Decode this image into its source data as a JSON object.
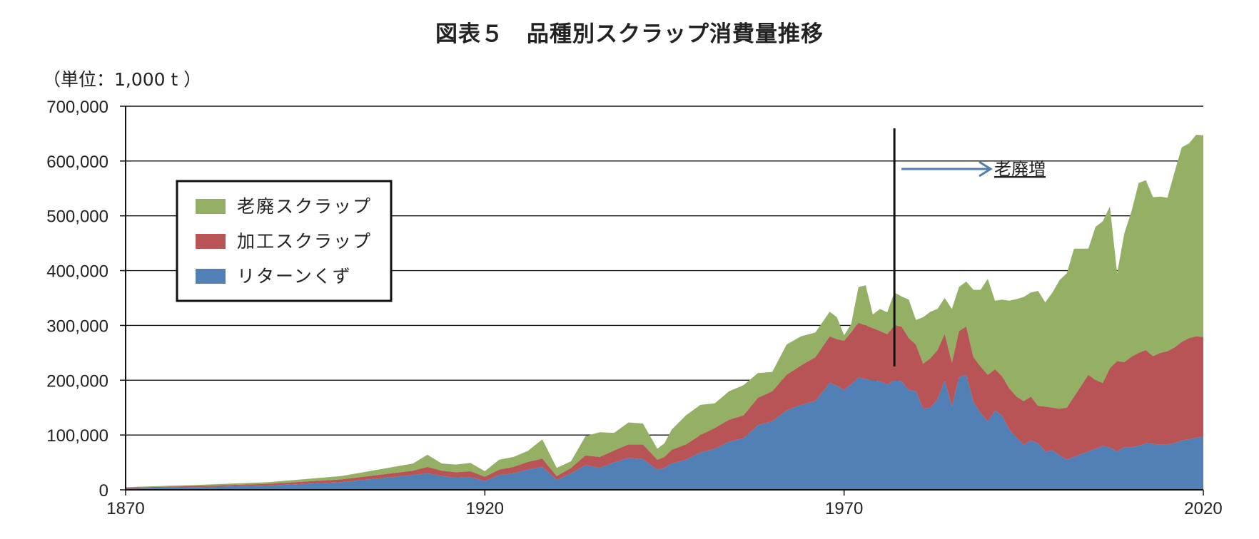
{
  "title": "図表５　品種別スクラップ消費量推移",
  "unit_label": "（単位：1,000 t ）",
  "colors": {
    "old_scrap": "#93b065",
    "process_scrap": "#b95456",
    "return_scrap": "#5080b5",
    "arrow": "#4f7fb5"
  },
  "annotation": "老廃増",
  "chart_data": {
    "type": "area",
    "stacked": true,
    "title": "図表５　品種別スクラップ消費量推移",
    "xlabel": "",
    "ylabel": "（単位：1,000 t ）",
    "xlim": [
      1870,
      2020
    ],
    "ylim": [
      0,
      700000
    ],
    "x_ticks": [
      1870,
      1920,
      1970,
      2020
    ],
    "x_tick_labels": [
      "1870",
      "1920",
      "1970",
      "2020"
    ],
    "y_ticks": [
      0,
      100000,
      200000,
      300000,
      400000,
      500000,
      600000,
      700000
    ],
    "y_tick_labels": [
      "0",
      "100,000",
      "200,000",
      "300,000",
      "400,000",
      "500,000",
      "600,000",
      "700,000"
    ],
    "grid": "horizontal",
    "legend_position": "left",
    "vertical_marker_x": 1977,
    "series": [
      {
        "name": "リターンくず",
        "x": [
          1870,
          1880,
          1890,
          1900,
          1910,
          1912,
          1914,
          1916,
          1918,
          1920,
          1922,
          1924,
          1926,
          1928,
          1930,
          1932,
          1934,
          1936,
          1938,
          1940,
          1942,
          1944,
          1945,
          1946,
          1948,
          1950,
          1952,
          1954,
          1956,
          1958,
          1960,
          1962,
          1964,
          1966,
          1968,
          1969,
          1970,
          1971,
          1972,
          1973,
          1974,
          1975,
          1976,
          1977,
          1978,
          1979,
          1980,
          1981,
          1982,
          1983,
          1984,
          1985,
          1986,
          1987,
          1988,
          1989,
          1990,
          1991,
          1992,
          1993,
          1994,
          1995,
          1996,
          1997,
          1998,
          1999,
          2000,
          2001,
          2002,
          2003,
          2004,
          2005,
          2006,
          2007,
          2008,
          2009,
          2010,
          2011,
          2012,
          2013,
          2014,
          2015,
          2016,
          2017,
          2018,
          2019,
          2020
        ],
        "values": [
          3000,
          5000,
          8000,
          14000,
          27000,
          30000,
          25000,
          22000,
          23000,
          16000,
          27000,
          30000,
          37000,
          42000,
          18000,
          30000,
          45000,
          40000,
          50000,
          58000,
          56000,
          37000,
          40000,
          48000,
          55000,
          68000,
          75000,
          88000,
          94000,
          118000,
          125000,
          145000,
          155000,
          162000,
          195000,
          190000,
          182000,
          193000,
          205000,
          202000,
          200000,
          198000,
          192000,
          200000,
          198000,
          182000,
          180000,
          148000,
          150000,
          165000,
          200000,
          152000,
          205000,
          210000,
          160000,
          140000,
          125000,
          145000,
          135000,
          110000,
          95000,
          82000,
          90000,
          85000,
          70000,
          72000,
          63000,
          55000,
          60000,
          65000,
          70000,
          75000,
          80000,
          77000,
          70000,
          78000,
          78000,
          80000,
          85000,
          84000,
          82000,
          83000,
          85000,
          90000,
          92000,
          95000,
          97000
        ]
      },
      {
        "name": "加工スクラップ",
        "x": [
          1870,
          1880,
          1890,
          1900,
          1910,
          1912,
          1914,
          1916,
          1918,
          1920,
          1922,
          1924,
          1926,
          1928,
          1930,
          1932,
          1934,
          1936,
          1938,
          1940,
          1942,
          1944,
          1945,
          1946,
          1948,
          1950,
          1952,
          1954,
          1956,
          1958,
          1960,
          1962,
          1964,
          1966,
          1968,
          1969,
          1970,
          1971,
          1972,
          1973,
          1974,
          1975,
          1976,
          1977,
          1978,
          1979,
          1980,
          1981,
          1982,
          1983,
          1984,
          1985,
          1986,
          1987,
          1988,
          1989,
          1990,
          1991,
          1992,
          1993,
          1994,
          1995,
          1996,
          1997,
          1998,
          1999,
          2000,
          2001,
          2002,
          2003,
          2004,
          2005,
          2006,
          2007,
          2008,
          2009,
          2010,
          2011,
          2012,
          2013,
          2014,
          2015,
          2016,
          2017,
          2018,
          2019,
          2020
        ],
        "values": [
          1000,
          2000,
          3000,
          5000,
          8000,
          12000,
          10000,
          10000,
          11000,
          8000,
          10000,
          12000,
          14000,
          15000,
          7000,
          10000,
          18000,
          20000,
          22000,
          25000,
          27000,
          18000,
          20000,
          25000,
          28000,
          32000,
          38000,
          40000,
          42000,
          50000,
          55000,
          65000,
          72000,
          80000,
          85000,
          85000,
          90000,
          95000,
          100000,
          98000,
          95000,
          92000,
          92000,
          100000,
          100000,
          95000,
          85000,
          82000,
          90000,
          90000,
          85000,
          80000,
          85000,
          88000,
          82000,
          85000,
          85000,
          75000,
          72000,
          75000,
          75000,
          80000,
          80000,
          68000,
          82000,
          78000,
          85000,
          95000,
          110000,
          125000,
          140000,
          125000,
          115000,
          145000,
          165000,
          155000,
          165000,
          170000,
          170000,
          160000,
          168000,
          170000,
          175000,
          180000,
          185000,
          185000,
          182000
        ]
      },
      {
        "name": "老廃スクラップ",
        "x": [
          1870,
          1880,
          1890,
          1900,
          1910,
          1912,
          1914,
          1916,
          1918,
          1920,
          1922,
          1924,
          1926,
          1928,
          1930,
          1932,
          1934,
          1936,
          1938,
          1940,
          1942,
          1944,
          1945,
          1946,
          1948,
          1950,
          1952,
          1954,
          1956,
          1958,
          1960,
          1962,
          1964,
          1966,
          1968,
          1969,
          1970,
          1971,
          1972,
          1973,
          1974,
          1975,
          1976,
          1977,
          1978,
          1979,
          1980,
          1981,
          1982,
          1983,
          1984,
          1985,
          1986,
          1987,
          1988,
          1989,
          1990,
          1991,
          1992,
          1993,
          1994,
          1995,
          1996,
          1997,
          1998,
          1999,
          2000,
          2001,
          2002,
          2003,
          2004,
          2005,
          2006,
          2007,
          2008,
          2009,
          2010,
          2011,
          2012,
          2013,
          2014,
          2015,
          2016,
          2017,
          2018,
          2019,
          2020
        ],
        "values": [
          1000,
          2000,
          3000,
          6000,
          13000,
          22000,
          13000,
          14000,
          15000,
          10000,
          18000,
          18000,
          20000,
          35000,
          15000,
          12000,
          35000,
          45000,
          32000,
          40000,
          38000,
          20000,
          25000,
          37000,
          53000,
          55000,
          45000,
          52000,
          55000,
          45000,
          35000,
          55000,
          53000,
          45000,
          45000,
          40000,
          10000,
          15000,
          65000,
          73000,
          25000,
          40000,
          40000,
          60000,
          55000,
          70000,
          45000,
          85000,
          85000,
          75000,
          65000,
          98000,
          80000,
          82000,
          123000,
          140000,
          175000,
          125000,
          140000,
          160000,
          178000,
          190000,
          190000,
          210000,
          190000,
          210000,
          235000,
          245000,
          270000,
          250000,
          230000,
          280000,
          295000,
          295000,
          160000,
          235000,
          265000,
          310000,
          310000,
          290000,
          285000,
          280000,
          320000,
          355000,
          355000,
          368000,
          368000
        ]
      }
    ]
  }
}
